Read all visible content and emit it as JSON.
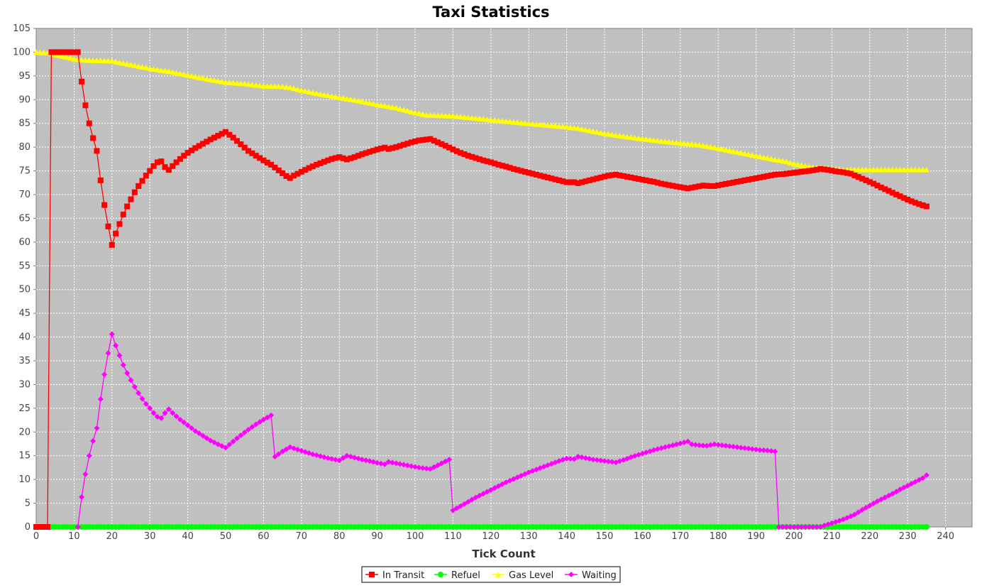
{
  "chart_data": {
    "type": "line",
    "title": "Taxi Statistics",
    "xlabel": "Tick Count",
    "ylabel": "",
    "xlim": [
      0,
      247
    ],
    "ylim": [
      0,
      105
    ],
    "xticks": [
      0,
      10,
      20,
      30,
      40,
      50,
      60,
      70,
      80,
      90,
      100,
      110,
      120,
      130,
      140,
      150,
      160,
      170,
      180,
      190,
      200,
      210,
      220,
      230,
      240
    ],
    "yticks": [
      0,
      5,
      10,
      15,
      20,
      25,
      30,
      35,
      40,
      45,
      50,
      55,
      60,
      65,
      70,
      75,
      80,
      85,
      90,
      95,
      100,
      105
    ],
    "grid": true,
    "plot_background": "#c0c0c0",
    "legend_position": "bottom",
    "series": [
      {
        "name": "In Transit",
        "color": "#ff0000",
        "marker": "square",
        "marker_interval": 1,
        "points": [
          [
            0,
            0
          ],
          [
            3,
            0
          ],
          [
            4,
            100
          ],
          [
            11,
            100
          ],
          [
            12,
            93.8
          ],
          [
            13,
            88.8
          ],
          [
            14,
            85
          ],
          [
            15,
            81.9
          ],
          [
            16,
            79.2
          ],
          [
            17,
            73
          ],
          [
            18,
            67.8
          ],
          [
            19,
            63.3
          ],
          [
            20,
            59.4
          ],
          [
            21,
            61.8
          ],
          [
            22,
            63.8
          ],
          [
            23,
            65.8
          ],
          [
            24,
            67.5
          ],
          [
            25,
            69
          ],
          [
            26,
            70.5
          ],
          [
            27,
            71.8
          ],
          [
            28,
            72.9
          ],
          [
            29,
            74
          ],
          [
            30,
            75
          ],
          [
            31,
            76
          ],
          [
            32,
            76.8
          ],
          [
            33,
            77
          ],
          [
            34,
            75.8
          ],
          [
            35,
            75.2
          ],
          [
            36,
            76
          ],
          [
            37,
            76.8
          ],
          [
            38,
            77.5
          ],
          [
            39,
            78.2
          ],
          [
            40,
            78.8
          ],
          [
            42,
            79.8
          ],
          [
            44,
            80.7
          ],
          [
            46,
            81.6
          ],
          [
            48,
            82.4
          ],
          [
            50,
            83.2
          ],
          [
            52,
            82
          ],
          [
            54,
            80.6
          ],
          [
            56,
            79.2
          ],
          [
            58,
            78.2
          ],
          [
            60,
            77.2
          ],
          [
            62,
            76.3
          ],
          [
            64,
            75.1
          ],
          [
            66,
            73.9
          ],
          [
            67,
            73.5
          ],
          [
            68,
            74
          ],
          [
            70,
            74.8
          ],
          [
            72,
            75.6
          ],
          [
            74,
            76.3
          ],
          [
            76,
            76.9
          ],
          [
            78,
            77.5
          ],
          [
            80,
            77.9
          ],
          [
            82,
            77.4
          ],
          [
            84,
            77.9
          ],
          [
            86,
            78.5
          ],
          [
            88,
            79
          ],
          [
            90,
            79.5
          ],
          [
            92,
            79.9
          ],
          [
            93,
            79.6
          ],
          [
            95,
            80
          ],
          [
            97,
            80.5
          ],
          [
            99,
            81
          ],
          [
            101,
            81.4
          ],
          [
            104,
            81.7
          ],
          [
            106,
            81
          ],
          [
            108,
            80.3
          ],
          [
            110,
            79.5
          ],
          [
            112,
            78.8
          ],
          [
            114,
            78.2
          ],
          [
            116,
            77.7
          ],
          [
            118,
            77.2
          ],
          [
            120,
            76.8
          ],
          [
            122,
            76.3
          ],
          [
            124,
            75.9
          ],
          [
            126,
            75.4
          ],
          [
            128,
            75
          ],
          [
            130,
            74.6
          ],
          [
            132,
            74.2
          ],
          [
            134,
            73.8
          ],
          [
            136,
            73.4
          ],
          [
            138,
            73
          ],
          [
            140,
            72.6
          ],
          [
            142,
            72.6
          ],
          [
            143,
            72.4
          ],
          [
            145,
            72.8
          ],
          [
            147,
            73.2
          ],
          [
            149,
            73.6
          ],
          [
            151,
            74
          ],
          [
            153,
            74.2
          ],
          [
            155,
            73.9
          ],
          [
            157,
            73.6
          ],
          [
            159,
            73.3
          ],
          [
            161,
            73
          ],
          [
            163,
            72.7
          ],
          [
            165,
            72.3
          ],
          [
            167,
            72
          ],
          [
            169,
            71.7
          ],
          [
            172,
            71.3
          ],
          [
            174,
            71.6
          ],
          [
            176,
            71.9
          ],
          [
            178,
            71.8
          ],
          [
            179,
            71.8
          ],
          [
            181,
            72.1
          ],
          [
            183,
            72.4
          ],
          [
            185,
            72.7
          ],
          [
            187,
            73
          ],
          [
            189,
            73.3
          ],
          [
            191,
            73.6
          ],
          [
            193,
            73.9
          ],
          [
            195,
            74.2
          ],
          [
            197,
            74.3
          ],
          [
            199,
            74.5
          ],
          [
            201,
            74.7
          ],
          [
            203,
            74.9
          ],
          [
            205,
            75.1
          ],
          [
            207,
            75.4
          ],
          [
            209,
            75.2
          ],
          [
            211,
            74.9
          ],
          [
            213,
            74.7
          ],
          [
            215,
            74.4
          ],
          [
            217,
            73.7
          ],
          [
            219,
            73
          ],
          [
            221,
            72.3
          ],
          [
            223,
            71.5
          ],
          [
            225,
            70.8
          ],
          [
            227,
            70
          ],
          [
            229,
            69.3
          ],
          [
            231,
            68.6
          ],
          [
            233,
            68
          ],
          [
            235,
            67.5
          ]
        ]
      },
      {
        "name": "Refuel",
        "color": "#00ff00",
        "marker": "circle",
        "marker_interval": 1,
        "points": [
          [
            0,
            0
          ],
          [
            235,
            0
          ]
        ]
      },
      {
        "name": "Gas Level",
        "color": "#ffff00",
        "marker": "triangle",
        "marker_interval": 1,
        "points": [
          [
            0,
            100
          ],
          [
            3,
            99.9
          ],
          [
            5,
            99.5
          ],
          [
            8,
            99
          ],
          [
            10,
            98.6
          ],
          [
            12,
            98.4
          ],
          [
            15,
            98.3
          ],
          [
            20,
            98.2
          ],
          [
            23,
            97.7
          ],
          [
            25,
            97.4
          ],
          [
            30,
            96.6
          ],
          [
            35,
            96
          ],
          [
            40,
            95.2
          ],
          [
            45,
            94.4
          ],
          [
            50,
            93.7
          ],
          [
            55,
            93.4
          ],
          [
            60,
            92.9
          ],
          [
            65,
            92.8
          ],
          [
            67,
            92.6
          ],
          [
            70,
            92
          ],
          [
            75,
            91.2
          ],
          [
            80,
            90.5
          ],
          [
            85,
            89.8
          ],
          [
            90,
            89
          ],
          [
            95,
            88.3
          ],
          [
            100,
            87.3
          ],
          [
            103,
            86.8
          ],
          [
            110,
            86.6
          ],
          [
            120,
            85.8
          ],
          [
            130,
            85
          ],
          [
            140,
            84.3
          ],
          [
            143,
            84
          ],
          [
            150,
            82.9
          ],
          [
            155,
            82.3
          ],
          [
            160,
            81.8
          ],
          [
            165,
            81.3
          ],
          [
            170,
            80.9
          ],
          [
            175,
            80.5
          ],
          [
            180,
            79.8
          ],
          [
            185,
            79
          ],
          [
            190,
            78.2
          ],
          [
            195,
            77.4
          ],
          [
            198,
            77
          ],
          [
            200,
            76.5
          ],
          [
            205,
            75.8
          ],
          [
            210,
            75.5
          ],
          [
            213,
            75.3
          ],
          [
            235,
            75.3
          ]
        ]
      },
      {
        "name": "Waiting",
        "color": "#ff00ff",
        "marker": "diamond",
        "marker_interval": 1,
        "points": [
          [
            11,
            0
          ],
          [
            12,
            6.3
          ],
          [
            13,
            11.1
          ],
          [
            14,
            15
          ],
          [
            15,
            18.1
          ],
          [
            16,
            20.8
          ],
          [
            17,
            26.9
          ],
          [
            18,
            32.1
          ],
          [
            19,
            36.6
          ],
          [
            20,
            40.6
          ],
          [
            21,
            38.2
          ],
          [
            22,
            36.1
          ],
          [
            23,
            34.1
          ],
          [
            24,
            32.4
          ],
          [
            25,
            30.9
          ],
          [
            26,
            29.5
          ],
          [
            27,
            28.2
          ],
          [
            28,
            27
          ],
          [
            29,
            25.9
          ],
          [
            30,
            25
          ],
          [
            31,
            24
          ],
          [
            32,
            23.2
          ],
          [
            33,
            22.9
          ],
          [
            34,
            24
          ],
          [
            35,
            24.8
          ],
          [
            36,
            24
          ],
          [
            38,
            22.6
          ],
          [
            40,
            21.4
          ],
          [
            42,
            20.2
          ],
          [
            44,
            19.2
          ],
          [
            46,
            18.2
          ],
          [
            48,
            17.4
          ],
          [
            50,
            16.7
          ],
          [
            52,
            18
          ],
          [
            54,
            19.3
          ],
          [
            56,
            20.5
          ],
          [
            58,
            21.6
          ],
          [
            60,
            22.6
          ],
          [
            62,
            23.5
          ],
          [
            63,
            14.8
          ],
          [
            65,
            15.9
          ],
          [
            67,
            16.8
          ],
          [
            69,
            16.3
          ],
          [
            71,
            15.8
          ],
          [
            73,
            15.3
          ],
          [
            75,
            14.9
          ],
          [
            77,
            14.5
          ],
          [
            80,
            14
          ],
          [
            82,
            15
          ],
          [
            84,
            14.6
          ],
          [
            86,
            14.2
          ],
          [
            88,
            13.9
          ],
          [
            90,
            13.5
          ],
          [
            92,
            13.2
          ],
          [
            93,
            13.7
          ],
          [
            95,
            13.4
          ],
          [
            97,
            13.1
          ],
          [
            99,
            12.8
          ],
          [
            101,
            12.5
          ],
          [
            104,
            12.2
          ],
          [
            106,
            13
          ],
          [
            108,
            13.8
          ],
          [
            109,
            14.2
          ],
          [
            110,
            3.5
          ],
          [
            112,
            4.4
          ],
          [
            114,
            5.3
          ],
          [
            116,
            6.2
          ],
          [
            118,
            7
          ],
          [
            120,
            7.8
          ],
          [
            122,
            8.6
          ],
          [
            124,
            9.4
          ],
          [
            126,
            10.1
          ],
          [
            128,
            10.8
          ],
          [
            130,
            11.5
          ],
          [
            132,
            12.1
          ],
          [
            134,
            12.7
          ],
          [
            136,
            13.3
          ],
          [
            138,
            13.9
          ],
          [
            140,
            14.4
          ],
          [
            142,
            14.3
          ],
          [
            143,
            14.8
          ],
          [
            145,
            14.5
          ],
          [
            147,
            14.2
          ],
          [
            149,
            14
          ],
          [
            151,
            13.8
          ],
          [
            153,
            13.6
          ],
          [
            155,
            14.1
          ],
          [
            157,
            14.7
          ],
          [
            159,
            15.2
          ],
          [
            161,
            15.7
          ],
          [
            163,
            16.2
          ],
          [
            165,
            16.6
          ],
          [
            167,
            17
          ],
          [
            169,
            17.4
          ],
          [
            172,
            18
          ],
          [
            173,
            17.4
          ],
          [
            175,
            17.2
          ],
          [
            177,
            17.1
          ],
          [
            179,
            17.4
          ],
          [
            181,
            17.2
          ],
          [
            183,
            17
          ],
          [
            185,
            16.8
          ],
          [
            187,
            16.6
          ],
          [
            189,
            16.4
          ],
          [
            191,
            16.2
          ],
          [
            193,
            16.1
          ],
          [
            195,
            15.9
          ],
          [
            196,
            0
          ],
          [
            207,
            0
          ],
          [
            208,
            0.3
          ],
          [
            210,
            0.8
          ],
          [
            212,
            1.3
          ],
          [
            214,
            1.9
          ],
          [
            216,
            2.6
          ],
          [
            218,
            3.6
          ],
          [
            220,
            4.5
          ],
          [
            222,
            5.4
          ],
          [
            224,
            6.2
          ],
          [
            226,
            7
          ],
          [
            228,
            7.9
          ],
          [
            230,
            8.7
          ],
          [
            232,
            9.5
          ],
          [
            234,
            10.3
          ],
          [
            235,
            10.9
          ]
        ]
      }
    ]
  }
}
